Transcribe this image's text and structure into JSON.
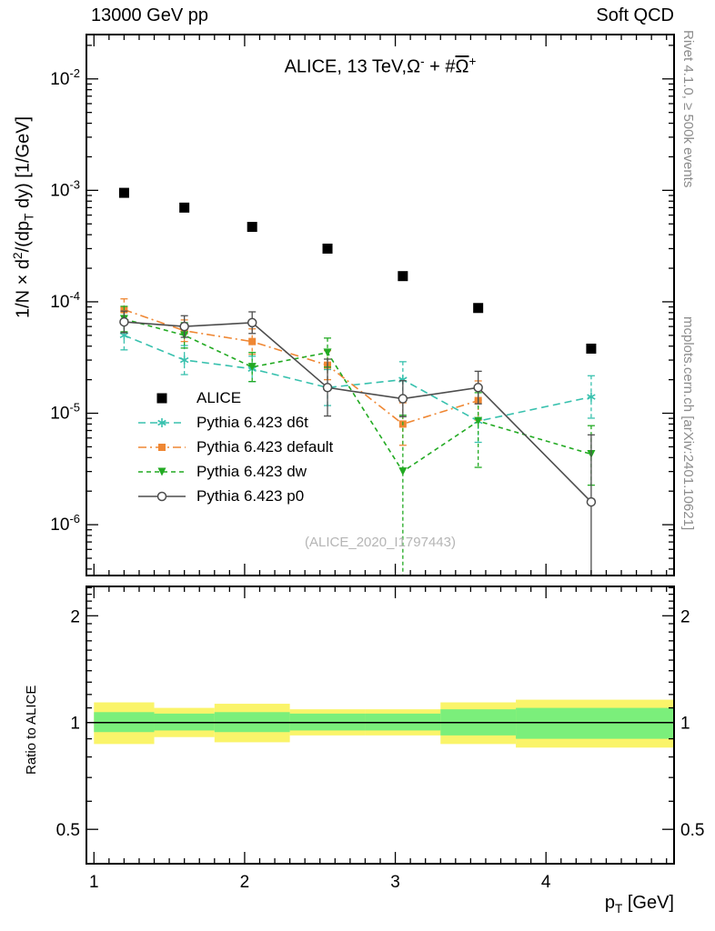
{
  "header": {
    "left": "13000 GeV pp",
    "right": "Soft QCD"
  },
  "side_notes": {
    "top_right": "Rivet 4.1.0, ≥ 500k events",
    "bottom_right": "mcplots.cern.ch [arXiv:2401.10621]"
  },
  "watermark": "(ALICE_2020_I1797443)",
  "chart_data": {
    "type": "line",
    "title": "ALICE, 13 TeV, Ω⁻ + #Ω̅⁺",
    "title_rich": [
      {
        "t": "ALICE, 13 TeV,Ω"
      },
      {
        "t": "-",
        "sup": true
      },
      {
        "t": " + #"
      },
      {
        "t": "Ω",
        "over": true
      },
      {
        "t": "+",
        "sup": true
      }
    ],
    "ylabel": "1/N × d²/(dp_T dy) [1/GeV]",
    "ylabel_rich": [
      {
        "t": "1/N × d"
      },
      {
        "t": "2",
        "sup": true
      },
      {
        "t": "/(dp"
      },
      {
        "t": "T",
        "sub": true
      },
      {
        "t": " dy) [1/GeV]"
      }
    ],
    "xlabel": "p_T [GeV]",
    "xlabel_rich": [
      {
        "t": "p"
      },
      {
        "t": "T",
        "sub": true
      },
      {
        "t": " [GeV]"
      }
    ],
    "ratio_ylabel": "Ratio to ALICE",
    "x_axis": {
      "min": 0.95,
      "max": 4.85,
      "major_ticks": [
        1,
        2,
        3,
        4
      ],
      "minor_step": 0.1
    },
    "y_axis": {
      "scale": "log",
      "min": 3.5e-07,
      "max": 0.025,
      "label_exponents": [
        -6,
        -5,
        -4,
        -3,
        -2
      ]
    },
    "ratio_axis": {
      "scale": "log",
      "min": 0.4,
      "max": 2.42,
      "major_ticks": [
        0.5,
        1,
        2
      ]
    },
    "colors": {
      "band_yellow": "#faf46a",
      "band_green": "#7bef7b",
      "frame": "#000000"
    },
    "series": [
      {
        "label": "ALICE",
        "color": "#000000",
        "marker": "square-filled",
        "marker_size": 11,
        "line": "none",
        "x": [
          1.2,
          1.6,
          2.05,
          2.55,
          3.05,
          3.55,
          4.3
        ],
        "y": [
          0.00095,
          0.0007,
          0.00047,
          0.0003,
          0.00017,
          8.8e-05,
          3.8e-05
        ],
        "ehi": [
          1.05,
          1.05,
          1.05,
          1.05,
          1.05,
          1.06,
          1.08
        ],
        "elo": [
          1.05,
          1.05,
          1.05,
          1.05,
          1.05,
          1.06,
          1.08
        ]
      },
      {
        "label": "Pythia 6.423 d6t",
        "color": "#38c1ae",
        "marker": "asterisk",
        "marker_size": 10,
        "line": "dashed",
        "x": [
          1.2,
          1.6,
          2.05,
          2.55,
          3.05,
          3.55,
          4.3
        ],
        "y": [
          5e-05,
          3e-05,
          2.5e-05,
          1.7e-05,
          2e-05,
          8.5e-06,
          1.4e-05
        ],
        "ehi": [
          1.35,
          1.35,
          1.3,
          1.45,
          1.45,
          1.55,
          1.55
        ],
        "elo": [
          1.35,
          1.35,
          1.3,
          1.45,
          1.45,
          1.55,
          1.55
        ]
      },
      {
        "label": "Pythia 6.423 default",
        "color": "#ef8733",
        "marker": "square-filled",
        "marker_size": 8,
        "line": "dashdot",
        "x": [
          1.2,
          1.6,
          2.05,
          2.55,
          3.05,
          3.55
        ],
        "y": [
          8.5e-05,
          5.5e-05,
          4.4e-05,
          2.7e-05,
          8e-06,
          1.3e-05
        ],
        "ehi": [
          1.25,
          1.25,
          1.3,
          1.35,
          1.55,
          1.5
        ],
        "elo": [
          1.25,
          1.25,
          1.3,
          1.35,
          1.55,
          1.5
        ]
      },
      {
        "label": "Pythia 6.423 dw",
        "color": "#22aa22",
        "marker": "triangle-down",
        "marker_size": 9,
        "line": "dashed2",
        "x": [
          1.2,
          1.6,
          2.05,
          2.55,
          3.05,
          3.55,
          4.3
        ],
        "y": [
          7e-05,
          5e-05,
          2.6e-05,
          3.5e-05,
          3e-06,
          8.5e-06,
          4.3e-06
        ],
        "ehi": [
          1.3,
          1.3,
          1.35,
          1.35,
          3.2,
          1.8,
          1.8
        ],
        "elo": [
          1.3,
          1.3,
          1.35,
          1.35,
          12,
          2.6,
          1.9
        ]
      },
      {
        "label": "Pythia 6.423 p0",
        "color": "#4d4d4d",
        "marker": "circle-open",
        "marker_size": 9,
        "line": "solid",
        "x": [
          1.2,
          1.6,
          2.05,
          2.55,
          3.05,
          3.55,
          4.3
        ],
        "y": [
          6.6e-05,
          6e-05,
          6.5e-05,
          1.7e-05,
          1.35e-05,
          1.7e-05,
          1.6e-06
        ],
        "ehi": [
          1.25,
          1.25,
          1.25,
          1.8,
          1.45,
          1.4,
          4.0
        ],
        "elo": [
          1.25,
          1.25,
          1.25,
          1.8,
          1.45,
          1.4,
          5.0
        ]
      }
    ],
    "ratio_bands": {
      "reference_line": 1.0,
      "yellow": [
        {
          "x1": 1.0,
          "x2": 1.4,
          "lo": 0.87,
          "hi": 1.14
        },
        {
          "x1": 1.4,
          "x2": 1.8,
          "lo": 0.91,
          "hi": 1.1
        },
        {
          "x1": 1.8,
          "x2": 2.3,
          "lo": 0.88,
          "hi": 1.13
        },
        {
          "x1": 2.3,
          "x2": 2.8,
          "lo": 0.92,
          "hi": 1.09
        },
        {
          "x1": 2.8,
          "x2": 3.3,
          "lo": 0.92,
          "hi": 1.09
        },
        {
          "x1": 3.3,
          "x2": 3.8,
          "lo": 0.87,
          "hi": 1.14
        },
        {
          "x1": 3.8,
          "x2": 4.85,
          "lo": 0.85,
          "hi": 1.16
        }
      ],
      "green": [
        {
          "x1": 1.0,
          "x2": 1.4,
          "lo": 0.94,
          "hi": 1.07
        },
        {
          "x1": 1.4,
          "x2": 1.8,
          "lo": 0.95,
          "hi": 1.06
        },
        {
          "x1": 1.8,
          "x2": 2.3,
          "lo": 0.94,
          "hi": 1.07
        },
        {
          "x1": 2.3,
          "x2": 2.8,
          "lo": 0.95,
          "hi": 1.06
        },
        {
          "x1": 2.8,
          "x2": 3.3,
          "lo": 0.95,
          "hi": 1.06
        },
        {
          "x1": 3.3,
          "x2": 3.8,
          "lo": 0.92,
          "hi": 1.09
        },
        {
          "x1": 3.8,
          "x2": 4.85,
          "lo": 0.9,
          "hi": 1.1
        }
      ]
    }
  }
}
